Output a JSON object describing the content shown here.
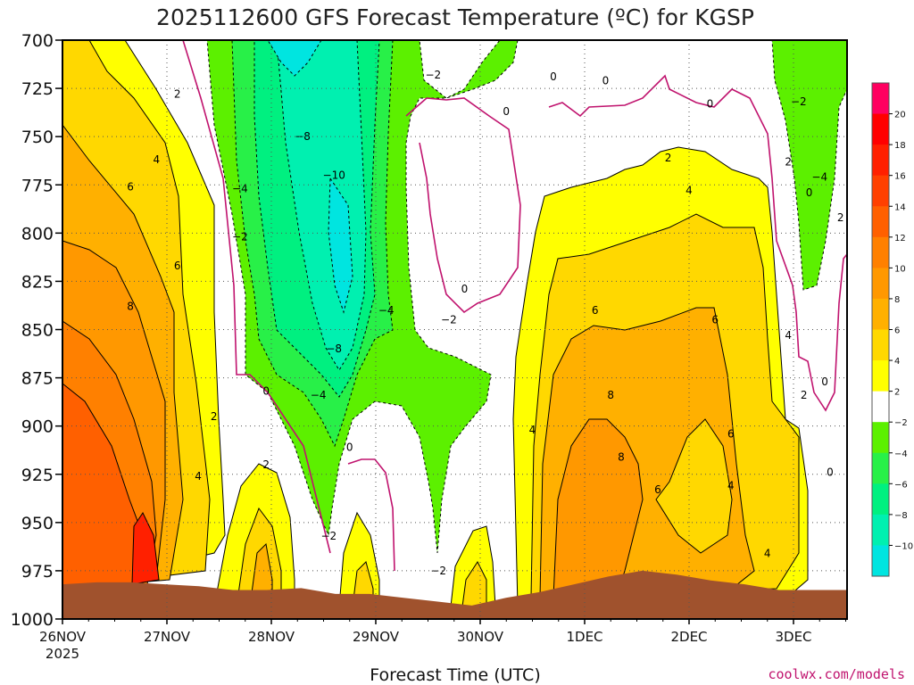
{
  "chart_data": {
    "type": "heatmap",
    "title": "2025112600 GFS Forecast Temperature (ºC) for KGSP",
    "xlabel": "Forecast Time (UTC)",
    "ylabel": "",
    "credit": "coolwx.com/models",
    "x_ticks": [
      "26NOV",
      "27NOV",
      "28NOV",
      "29NOV",
      "30NOV",
      "1DEC",
      "2DEC",
      "3DEC"
    ],
    "x_year": "2025",
    "x_range_days": [
      0,
      7.5
    ],
    "y_ticks": [
      "700",
      "725",
      "750",
      "775",
      "800",
      "825",
      "850",
      "875",
      "900",
      "925",
      "950",
      "975",
      "1000"
    ],
    "y_range": [
      700,
      1000
    ],
    "colorbar": {
      "levels": [
        -12,
        -10,
        -8,
        -6,
        -4,
        -2,
        2,
        4,
        6,
        8,
        10,
        12,
        14,
        16,
        18,
        20,
        22
      ],
      "tick_labels": [
        "-10",
        "-8",
        "-6",
        "-4",
        "-2",
        "2",
        "4",
        "6",
        "8",
        "10",
        "12",
        "14",
        "16",
        "18",
        "20"
      ],
      "colors": [
        "#00e5e0",
        "#00f0b0",
        "#00f080",
        "#28f048",
        "#5cf000",
        "#ffffff",
        "#ffff00",
        "#ffd800",
        "#ffb000",
        "#ff9800",
        "#ff8000",
        "#ff6000",
        "#ff4000",
        "#ff2000",
        "#ff0000",
        "#ff0060"
      ]
    },
    "terrain": {
      "color": "#a0522d",
      "pressure": [
        982,
        981,
        981,
        982,
        983,
        985,
        985,
        984,
        987,
        987,
        989,
        991,
        993,
        989,
        986,
        982,
        978,
        975,
        977,
        980,
        982,
        985,
        985,
        985
      ]
    },
    "freezing_line_color": "#c0136e",
    "contour_labels": [
      {
        "text": "2",
        "t": 1.1,
        "p": 728
      },
      {
        "text": "4",
        "t": 0.9,
        "p": 762
      },
      {
        "text": "6",
        "t": 0.65,
        "p": 776
      },
      {
        "text": "6",
        "t": 1.1,
        "p": 817
      },
      {
        "text": "8",
        "t": 0.65,
        "p": 838
      },
      {
        "text": "2",
        "t": 1.45,
        "p": 895
      },
      {
        "text": "4",
        "t": 1.3,
        "p": 926
      },
      {
        "text": "2",
        "t": 1.95,
        "p": 920
      },
      {
        "text": "0",
        "t": 1.95,
        "p": 882
      },
      {
        "text": "-4",
        "t": 1.7,
        "p": 777
      },
      {
        "text": "-2",
        "t": 1.7,
        "p": 802
      },
      {
        "text": "-8",
        "t": 2.3,
        "p": 750
      },
      {
        "text": "-10",
        "t": 2.6,
        "p": 770
      },
      {
        "text": "-8",
        "t": 2.6,
        "p": 860
      },
      {
        "text": "-4",
        "t": 2.45,
        "p": 884
      },
      {
        "text": "-4",
        "t": 3.1,
        "p": 840
      },
      {
        "text": "0",
        "t": 2.75,
        "p": 911
      },
      {
        "text": "-2",
        "t": 2.55,
        "p": 957
      },
      {
        "text": "-2",
        "t": 3.55,
        "p": 718
      },
      {
        "text": "0",
        "t": 4.25,
        "p": 737
      },
      {
        "text": "0",
        "t": 4.7,
        "p": 719
      },
      {
        "text": "0",
        "t": 5.2,
        "p": 721
      },
      {
        "text": "0",
        "t": 6.2,
        "p": 733
      },
      {
        "text": "0",
        "t": 3.85,
        "p": 829
      },
      {
        "text": "-2",
        "t": 3.7,
        "p": 845
      },
      {
        "text": "-2",
        "t": 3.6,
        "p": 975
      },
      {
        "text": "4",
        "t": 4.5,
        "p": 902
      },
      {
        "text": "6",
        "t": 5.1,
        "p": 840
      },
      {
        "text": "8",
        "t": 5.25,
        "p": 884
      },
      {
        "text": "8",
        "t": 5.35,
        "p": 916
      },
      {
        "text": "6",
        "t": 5.7,
        "p": 933
      },
      {
        "text": "4",
        "t": 6.0,
        "p": 778
      },
      {
        "text": "2",
        "t": 5.8,
        "p": 761
      },
      {
        "text": "6",
        "t": 6.25,
        "p": 845
      },
      {
        "text": "6",
        "t": 6.4,
        "p": 904
      },
      {
        "text": "4",
        "t": 6.4,
        "p": 931
      },
      {
        "text": "4",
        "t": 6.75,
        "p": 966
      },
      {
        "text": "4",
        "t": 6.95,
        "p": 853
      },
      {
        "text": "2",
        "t": 6.95,
        "p": 763
      },
      {
        "text": "0",
        "t": 7.15,
        "p": 779
      },
      {
        "text": "-2",
        "t": 7.05,
        "p": 732
      },
      {
        "text": "-4",
        "t": 7.25,
        "p": 771
      },
      {
        "text": "2",
        "t": 7.45,
        "p": 792
      },
      {
        "text": "2",
        "t": 7.1,
        "p": 884
      },
      {
        "text": "0",
        "t": 7.3,
        "p": 877
      },
      {
        "text": "0",
        "t": 7.35,
        "p": 924
      }
    ]
  }
}
